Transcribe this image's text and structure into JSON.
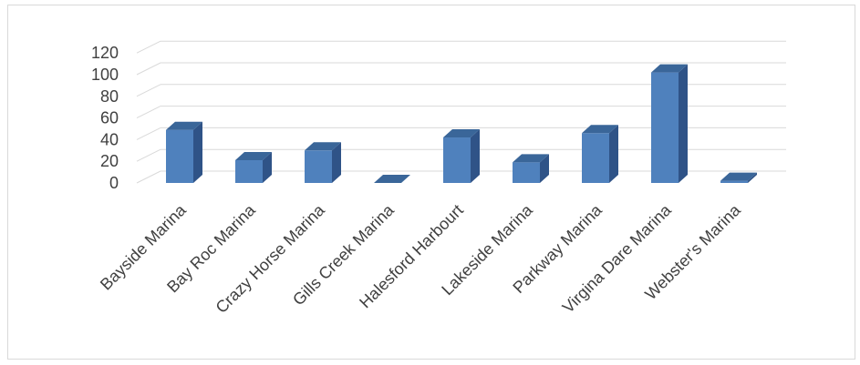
{
  "chart_data": {
    "type": "bar",
    "style": "3d-column",
    "categories": [
      "Bayside Marina",
      "Bay Roc Marina",
      "Crazy Horse Marina",
      "Gills Creek Marina",
      "Halesford Harbourt",
      "Lakeside Marina",
      "Parkway Marina",
      "Virgina Dare Marina",
      "Webster's Marina"
    ],
    "values": [
      49,
      21,
      30,
      0,
      42,
      19,
      46,
      102,
      2
    ],
    "ylim": [
      0,
      120
    ],
    "yticks": [
      "0",
      "20",
      "40",
      "60",
      "80",
      "100",
      "120"
    ],
    "title": "",
    "xlabel": "",
    "ylabel": "",
    "grid": true,
    "legend": "none",
    "colors": {
      "bar_front": "#4f81bd",
      "bar_side": "#2f5387",
      "bar_top": "#3a6699",
      "grid": "#d9d9d9",
      "text": "#404040"
    }
  }
}
